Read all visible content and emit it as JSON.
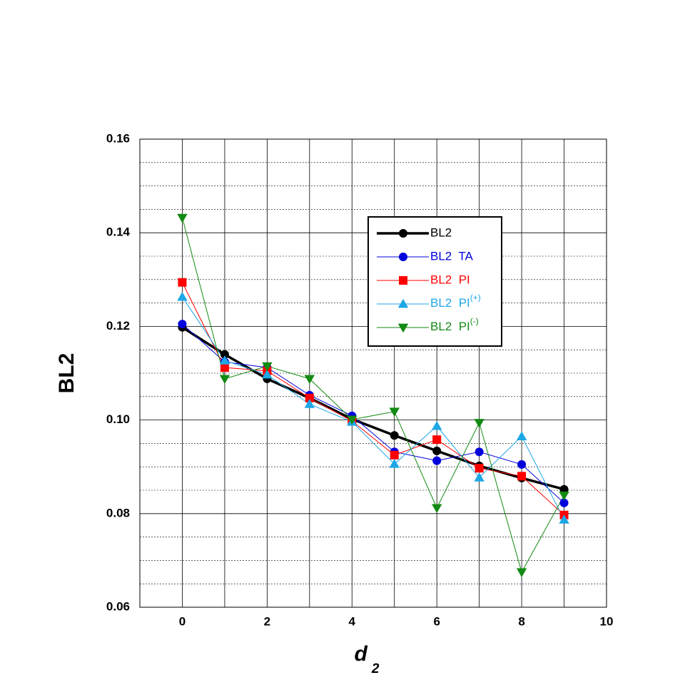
{
  "chart_data": {
    "type": "line",
    "x_label": {
      "text": "d",
      "subscript": "2"
    },
    "y_label": "BL2",
    "x": [
      0,
      1,
      2,
      3,
      4,
      5,
      6,
      7,
      8,
      9
    ],
    "xlim": [
      -1,
      10
    ],
    "xticks": [
      0,
      2,
      4,
      6,
      8,
      10
    ],
    "ylim": [
      0.06,
      0.16
    ],
    "yticks": [
      0.06,
      0.08,
      {
        "value": 0.1,
        "label": "0.10"
      },
      0.12,
      0.14,
      0.16
    ],
    "grid": true,
    "legend": "upper right",
    "series": [
      {
        "name": "BL2",
        "color": "#000000",
        "marker": "circle",
        "line_width": 3.5,
        "values": [
          0.1198,
          0.114,
          0.1088,
          0.1047,
          0.1002,
          0.0967,
          0.0934,
          0.0902,
          0.0876,
          0.0852
        ]
      },
      {
        "name": "BL2  TA",
        "color": "#0000dd",
        "marker": "circle",
        "line_width": 1,
        "values": [
          0.1205,
          0.1124,
          0.1112,
          0.1053,
          0.1009,
          0.0932,
          0.0913,
          0.0932,
          0.0905,
          0.0823
        ]
      },
      {
        "name": "BL2  PI",
        "color": "#ff0000",
        "marker": "square",
        "line_width": 1,
        "values": [
          0.1294,
          0.1112,
          0.1105,
          0.1047,
          0.0998,
          0.0925,
          0.0958,
          0.0897,
          0.088,
          0.0797
        ]
      },
      {
        "name": "BL2  PI(+)",
        "color": "#1ea7e6",
        "marker": "triangle-up",
        "line_width": 1,
        "values": [
          0.1263,
          0.1127,
          0.1097,
          0.1034,
          0.0996,
          0.0906,
          0.0987,
          0.0877,
          0.0965,
          0.0787
        ]
      },
      {
        "name": "BL2  PI(-)",
        "color": "#138a13",
        "marker": "triangle-down",
        "line_width": 1,
        "values": [
          0.1432,
          0.1088,
          0.1115,
          0.1088,
          0.1001,
          0.1018,
          0.0812,
          0.0994,
          0.0675,
          0.0839
        ]
      }
    ]
  }
}
